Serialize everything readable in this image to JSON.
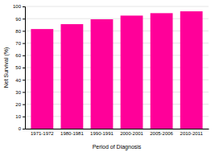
{
  "chart_data": {
    "type": "bar",
    "categories": [
      "1971-1972",
      "1980-1981",
      "1990-1991",
      "2000-2001",
      "2005-2006",
      "2010-2011"
    ],
    "values": [
      81.5,
      85.5,
      89.5,
      92.5,
      94.5,
      96.0
    ],
    "color": "#FF0099",
    "xlabel": "Period of Diagnosis",
    "ylabel": "Net Survival (%)",
    "ylim": [
      0,
      100
    ],
    "yticks": [
      0,
      10,
      20,
      30,
      40,
      50,
      60,
      70,
      80,
      90,
      100
    ],
    "grid": true
  }
}
